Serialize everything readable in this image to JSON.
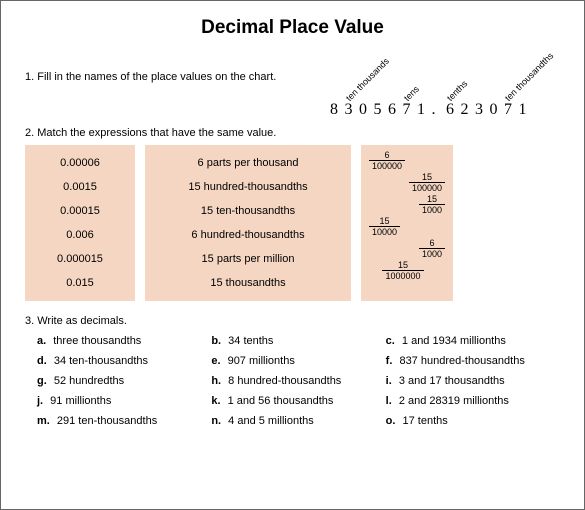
{
  "title": "Decimal Place Value",
  "q1": {
    "prompt": "1. Fill in the names of the place values on the chart.",
    "digits": [
      "8",
      "3",
      "0",
      "5",
      "6",
      "7",
      "1",
      ".",
      "6",
      "2",
      "3",
      "0",
      "7",
      "1"
    ],
    "labels": [
      "ten thousands",
      "tens",
      "tenths",
      "ten thousandths"
    ]
  },
  "q2": {
    "prompt": "2. Match the expressions that have the same value.",
    "colA": [
      "0.00006",
      "0.0015",
      "0.00015",
      "0.006",
      "0.000015",
      "0.015"
    ],
    "colB": [
      "6 parts per thousand",
      "15 hundred-thousandths",
      "15 ten-thousandths",
      "6 hundred-thousandths",
      "15 parts per million",
      "15 thousandths"
    ],
    "fractions": [
      {
        "n": "6",
        "d": "100000",
        "align": "left"
      },
      {
        "n": "15",
        "d": "100000",
        "align": "right"
      },
      {
        "n": "15",
        "d": "1000",
        "align": "right"
      },
      {
        "n": "15",
        "d": "10000",
        "align": "left"
      },
      {
        "n": "6",
        "d": "1000",
        "align": "right"
      },
      {
        "n": "15",
        "d": "1000000",
        "align": "center"
      }
    ],
    "bg": "#f4d6c2"
  },
  "q3": {
    "prompt": "3. Write as decimals.",
    "items": [
      {
        "l": "a.",
        "t": "three thousandths"
      },
      {
        "l": "b.",
        "t": "34 tenths"
      },
      {
        "l": "c.",
        "t": "1 and 1934 millionths"
      },
      {
        "l": "d.",
        "t": "34 ten-thousandths"
      },
      {
        "l": "e.",
        "t": "907 millionths"
      },
      {
        "l": "f.",
        "t": "837 hundred-thousandths"
      },
      {
        "l": "g.",
        "t": "52 hundredths"
      },
      {
        "l": "h.",
        "t": "8 hundred-thousandths"
      },
      {
        "l": "i.",
        "t": "3 and 17 thousandths"
      },
      {
        "l": "j.",
        "t": "91 millionths"
      },
      {
        "l": "k.",
        "t": "1 and 56 thousandths"
      },
      {
        "l": "l.",
        "t": "2 and 28319 millionths"
      },
      {
        "l": "m.",
        "t": "291 ten-thousandths"
      },
      {
        "l": "n.",
        "t": "4 and 5 millionths"
      },
      {
        "l": "o.",
        "t": "17 tenths"
      }
    ]
  }
}
